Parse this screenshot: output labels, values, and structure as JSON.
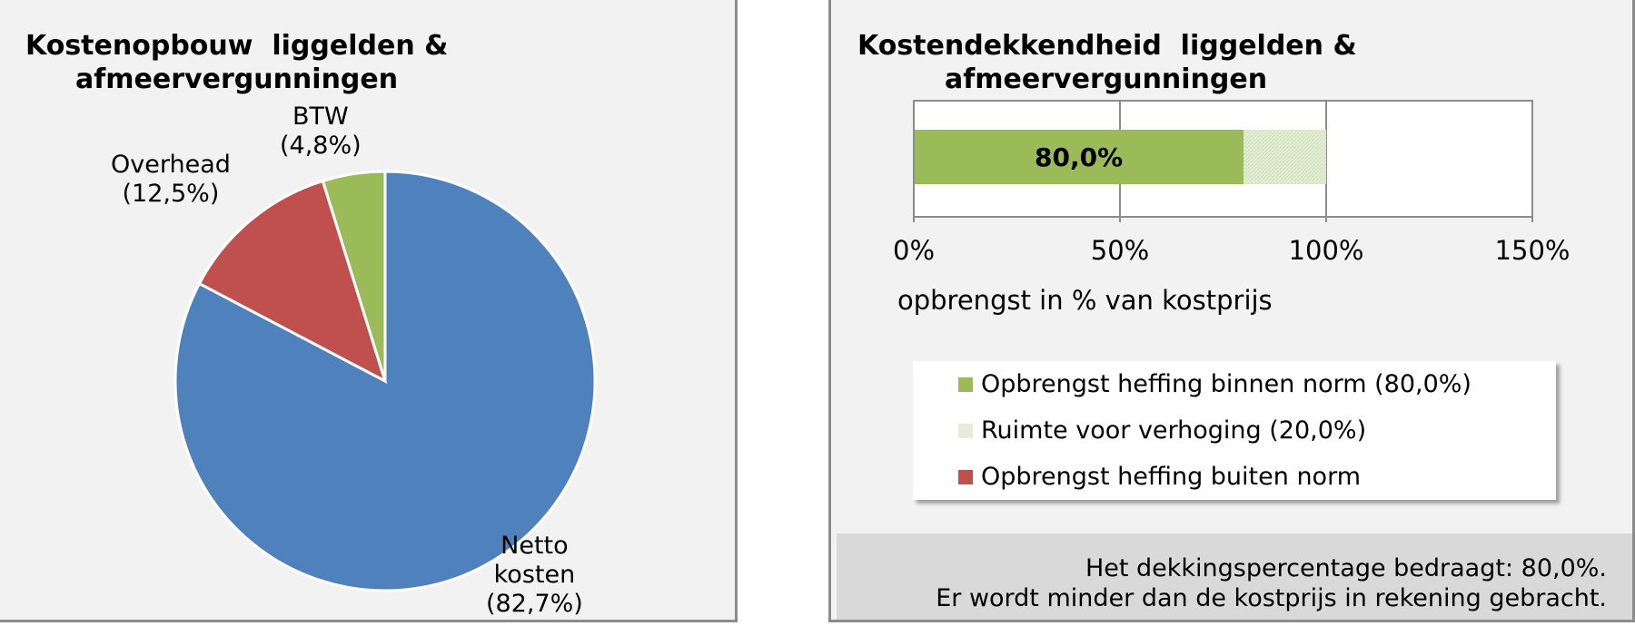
{
  "left": {
    "title_line1": "Kostenopbouw  liggelden &",
    "title_line2": "afmeervergunningen"
  },
  "right": {
    "title_line1": "Kostendekkendheid  liggelden &",
    "title_line2": "afmeervergunningen",
    "legend": [
      {
        "label": "Opbrengst heffing binnen norm (80,0%)",
        "color": "#9bbb59"
      },
      {
        "label": "Ruimte voor verhoging (20,0%)",
        "color": "#e4eed6"
      },
      {
        "label": "Opbrengst heffing buiten norm",
        "color": "#c0504d"
      }
    ],
    "note_line1": "Het dekkingspercentage bedraagt: 80,0%.",
    "note_line2": "Er wordt minder dan de kostprijs in rekening gebracht."
  },
  "chart_data": [
    {
      "type": "pie",
      "title": "Kostenopbouw  liggelden & afmeervergunningen",
      "slices": [
        {
          "label_line1": "Netto",
          "label_line2": "kosten",
          "pct_text": "(82,7%)",
          "value": 82.7,
          "color": "#4f81bd"
        },
        {
          "label_line1": "Overhead",
          "label_line2": "",
          "pct_text": "(12,5%)",
          "value": 12.5,
          "color": "#c0504d"
        },
        {
          "label_line1": "BTW",
          "label_line2": "",
          "pct_text": "(4,8%)",
          "value": 4.8,
          "color": "#9bbb59"
        }
      ]
    },
    {
      "type": "bar",
      "orientation": "horizontal",
      "stacked": true,
      "title": "Kostendekkendheid  liggelden & afmeervergunningen",
      "xlabel": "opbrengst in % van kostprijs",
      "xlim": [
        0,
        150
      ],
      "xticks": [
        0,
        50,
        100,
        150
      ],
      "xtick_labels": [
        "0%",
        "50%",
        "100%",
        "150%"
      ],
      "grid": true,
      "series": [
        {
          "name": "Opbrengst heffing binnen norm (80,0%)",
          "value": 80.0,
          "data_label": "80,0%",
          "color": "#9bbb59"
        },
        {
          "name": "Ruimte voor verhoging (20,0%)",
          "value": 20.0,
          "color": "#e4eed6"
        },
        {
          "name": "Opbrengst heffing buiten norm",
          "value": 0,
          "color": "#c0504d"
        }
      ]
    }
  ]
}
